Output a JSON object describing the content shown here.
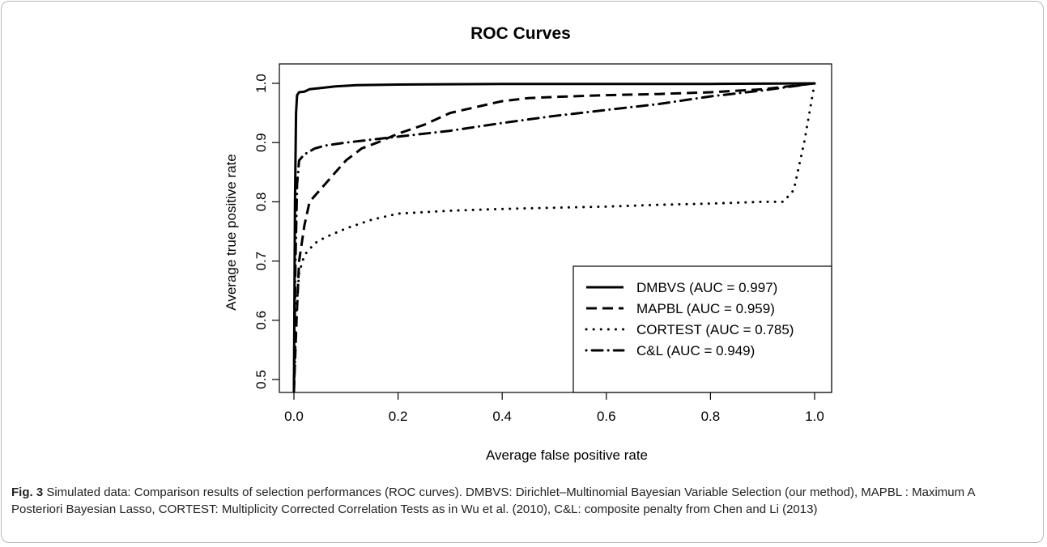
{
  "chart_data": {
    "type": "line",
    "title": "ROC Curves",
    "xlabel": "Average false positive rate",
    "ylabel": "Average true positive rate",
    "xlim": [
      0.0,
      1.0
    ],
    "ylim": [
      0.5,
      1.0
    ],
    "xticks": [
      "0.0",
      "0.2",
      "0.4",
      "0.6",
      "0.8",
      "1.0"
    ],
    "yticks": [
      "0.5",
      "0.6",
      "0.7",
      "0.8",
      "0.9",
      "1.0"
    ],
    "legend_position": "bottom-right",
    "series": [
      {
        "name": "DMBVS (AUC = 0.997)",
        "style": "solid",
        "x": [
          0.0,
          0.002,
          0.004,
          0.006,
          0.01,
          0.02,
          0.03,
          0.05,
          0.08,
          0.12,
          0.2,
          0.4,
          0.6,
          0.8,
          1.0
        ],
        "y": [
          0.48,
          0.8,
          0.95,
          0.98,
          0.985,
          0.986,
          0.99,
          0.992,
          0.995,
          0.997,
          0.998,
          0.999,
          0.999,
          0.999,
          1.0
        ]
      },
      {
        "name": "MAPBL (AUC = 0.959)",
        "style": "dashed",
        "x": [
          0.0,
          0.005,
          0.01,
          0.02,
          0.03,
          0.05,
          0.08,
          0.1,
          0.13,
          0.16,
          0.2,
          0.25,
          0.3,
          0.35,
          0.4,
          0.45,
          0.5,
          0.6,
          0.7,
          0.8,
          0.9,
          1.0
        ],
        "y": [
          0.48,
          0.6,
          0.7,
          0.76,
          0.8,
          0.82,
          0.85,
          0.87,
          0.89,
          0.9,
          0.915,
          0.93,
          0.95,
          0.96,
          0.97,
          0.975,
          0.977,
          0.98,
          0.982,
          0.985,
          0.99,
          1.0
        ]
      },
      {
        "name": "CORTEST (AUC = 0.785)",
        "style": "dotted",
        "x": [
          0.0,
          0.005,
          0.01,
          0.02,
          0.04,
          0.06,
          0.1,
          0.15,
          0.2,
          0.3,
          0.4,
          0.5,
          0.6,
          0.7,
          0.8,
          0.9,
          0.94,
          0.96,
          0.98,
          1.0
        ],
        "y": [
          0.48,
          0.62,
          0.68,
          0.71,
          0.73,
          0.74,
          0.755,
          0.77,
          0.78,
          0.785,
          0.788,
          0.79,
          0.792,
          0.795,
          0.797,
          0.8,
          0.8,
          0.82,
          0.9,
          1.0
        ]
      },
      {
        "name": "C&L (AUC = 0.949)",
        "style": "dotdash",
        "x": [
          0.0,
          0.003,
          0.006,
          0.01,
          0.02,
          0.04,
          0.06,
          0.1,
          0.15,
          0.2,
          0.3,
          0.4,
          0.5,
          0.6,
          0.7,
          0.8,
          0.9,
          1.0
        ],
        "y": [
          0.48,
          0.7,
          0.83,
          0.87,
          0.88,
          0.89,
          0.895,
          0.9,
          0.905,
          0.91,
          0.92,
          0.933,
          0.945,
          0.955,
          0.965,
          0.978,
          0.988,
          1.0
        ]
      }
    ]
  },
  "caption": {
    "label": "Fig. 3",
    "text": "Simulated data: Comparison results of selection performances (ROC curves). DMBVS: Dirichlet–Multinomial Bayesian Variable Selection (our method), MAPBL : Maximum A Posteriori Bayesian Lasso, CORTEST: Multiplicity Corrected Correlation Tests as in Wu et al. (2010), C&L: composite penalty from Chen and Li (2013)"
  }
}
